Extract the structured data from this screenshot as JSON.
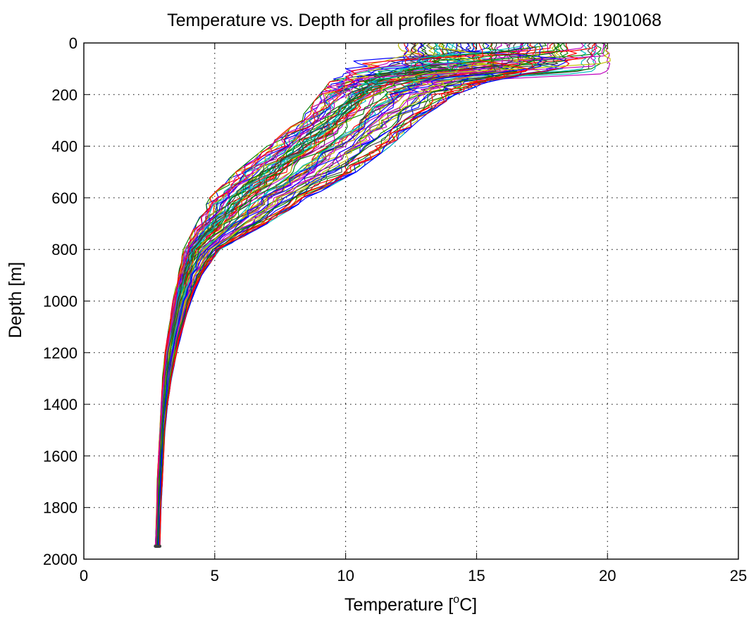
{
  "chart_data": {
    "type": "line",
    "title": "Temperature vs. Depth for all profiles for float WMOId: 1901068",
    "xlabel": "Temperature [",
    "xlabel_sup": "o",
    "xlabel_tail": "C]",
    "ylabel": "Depth [m]",
    "xlim": [
      0,
      25
    ],
    "ylim": [
      2000,
      0
    ],
    "y_reversed": true,
    "xticks": [
      0,
      5,
      10,
      15,
      20,
      25
    ],
    "yticks": [
      0,
      200,
      400,
      600,
      800,
      1000,
      1200,
      1400,
      1600,
      1800,
      2000
    ],
    "grid": true,
    "legend": "none",
    "colors": [
      "#0000ff",
      "#008000",
      "#ff0000",
      "#00bfbf",
      "#bf00bf",
      "#bfbf00",
      "#404040"
    ],
    "num_profiles": 80,
    "envelope_depth": [
      0,
      50,
      100,
      150,
      200,
      300,
      400,
      500,
      600,
      700,
      800,
      900,
      1000,
      1100,
      1200,
      1300,
      1400,
      1500,
      1600,
      1700,
      1800,
      1900,
      1970
    ],
    "envelope_temp_min": [
      12.0,
      10.5,
      10.0,
      9.4,
      9.0,
      8.2,
      7.0,
      5.8,
      4.8,
      4.3,
      3.8,
      3.6,
      3.4,
      3.25,
      3.1,
      3.0,
      2.95,
      2.9,
      2.85,
      2.8,
      2.78,
      2.75,
      2.72
    ],
    "envelope_temp_max": [
      20.0,
      19.6,
      18.3,
      15.5,
      14.2,
      12.8,
      11.7,
      10.4,
      8.6,
      7.0,
      5.2,
      4.5,
      4.1,
      3.8,
      3.55,
      3.35,
      3.2,
      3.1,
      3.05,
      3.0,
      2.95,
      2.92,
      2.9
    ],
    "series_example": {
      "name": "",
      "depth": [
        0,
        40,
        100,
        200,
        300,
        400,
        500,
        600,
        700,
        800,
        900,
        1000,
        1200,
        1400,
        1600,
        1800,
        1970
      ],
      "temperature": [
        16.5,
        15.5,
        14.2,
        12.7,
        11.3,
        9.9,
        8.2,
        6.6,
        5.3,
        4.6,
        4.1,
        3.7,
        3.3,
        3.1,
        2.95,
        2.85,
        2.75
      ]
    }
  }
}
